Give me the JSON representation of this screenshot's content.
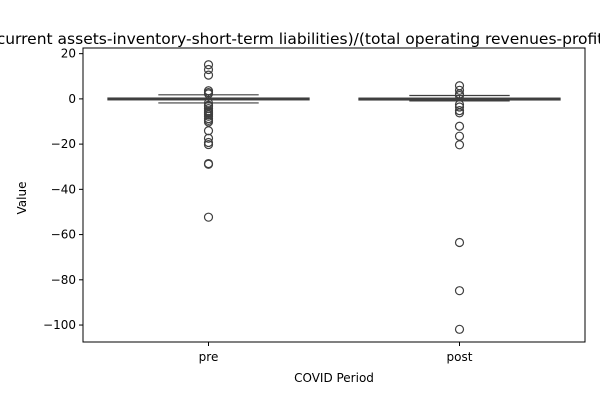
{
  "chart_data": {
    "type": "box",
    "title": "(current assets-inventory-short-term liabilities)/(total operating revenues-profit)",
    "xlabel": "COVID Period",
    "ylabel": "Value",
    "ylim": [
      -107.5,
      22.5
    ],
    "yticks": [
      20,
      0,
      -20,
      -40,
      -60,
      -80,
      -100
    ],
    "ytick_labels": [
      "20",
      "0",
      "−20",
      "−40",
      "−60",
      "−80",
      "−100"
    ],
    "categories": [
      "pre",
      "post"
    ],
    "series": [
      {
        "category": "pre",
        "median": 0.0,
        "q1": -0.3,
        "q3": 0.3,
        "whisker_low": -1.8,
        "whisker_high": 1.8,
        "outliers": [
          15.1,
          13.0,
          10.5,
          3.6,
          2.8,
          2.2,
          -1.8,
          -2.8,
          -3.3,
          -4.3,
          -5.3,
          -5.8,
          -6.3,
          -7.0,
          -7.7,
          -8.7,
          -9.5,
          -10.2,
          -14.1,
          -17.4,
          -19.3,
          -20.2,
          -28.6,
          -28.9,
          -52.3
        ]
      },
      {
        "category": "post",
        "median": 0.0,
        "q1": -0.25,
        "q3": 0.25,
        "whisker_low": -0.9,
        "whisker_high": 1.5,
        "outliers": [
          5.8,
          3.8,
          2.2,
          1.5,
          -2.5,
          -3.6,
          -5.2,
          -6.2,
          -12.1,
          -16.5,
          -20.3,
          -63.5,
          -84.8,
          -101.9
        ]
      }
    ],
    "grid": false,
    "legend": "none",
    "colors": {
      "box_line": "#3f3f3f",
      "box_fill": "#ffffff",
      "spine": "#000000"
    }
  }
}
